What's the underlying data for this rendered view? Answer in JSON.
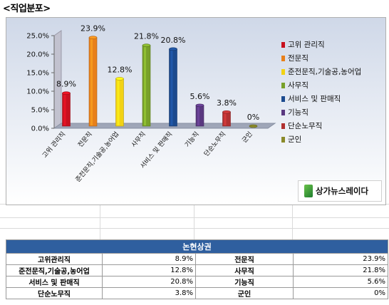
{
  "title": "<직업분포>",
  "chart_data": {
    "type": "bar",
    "categories": [
      "고위 관리직",
      "전문직",
      "준전문직,기술공,농어업",
      "사무직",
      "서비스 및 판매직",
      "기능직",
      "단순노무직",
      "군인"
    ],
    "values": [
      8.9,
      23.9,
      12.8,
      21.8,
      20.8,
      5.6,
      3.8,
      0
    ],
    "value_labels": [
      "8.9%",
      "23.9%",
      "12.8%",
      "21.8%",
      "20.8%",
      "5.6%",
      "3.8%",
      "0%"
    ],
    "colors": [
      "#c8101e",
      "#e8801a",
      "#f2d214",
      "#78a02a",
      "#1c4a8e",
      "#5a3880",
      "#b03030",
      "#8a8a2a"
    ],
    "yticks": [
      "0.0%",
      "5.0%",
      "10.0%",
      "15.0%",
      "20.0%",
      "25.0%"
    ],
    "ylim": [
      0,
      25
    ],
    "legend": [
      "고위 관리직",
      "전문직",
      "준전문직,기술공,농어업",
      "사무직",
      "서비스 및 판매직",
      "기능직",
      "단순노무직",
      "군인"
    ],
    "legend_position": "right",
    "grid": false,
    "3d": true
  },
  "logo": {
    "text": "상가뉴스레이다"
  },
  "table": {
    "header": "논현상권",
    "rows": [
      [
        {
          "label": "고위관리직",
          "value": "8.9%"
        },
        {
          "label": "전문직",
          "value": "23.9%"
        }
      ],
      [
        {
          "label": "준전문직,기술공,농어업",
          "value": "12.8%"
        },
        {
          "label": "사무직",
          "value": "21.8%"
        }
      ],
      [
        {
          "label": "서비스 및 판매직",
          "value": "20.8%"
        },
        {
          "label": "기능직",
          "value": "5.6%"
        }
      ],
      [
        {
          "label": "단순노무직",
          "value": "3.8%"
        },
        {
          "label": "군인",
          "value": "0%"
        }
      ]
    ]
  }
}
